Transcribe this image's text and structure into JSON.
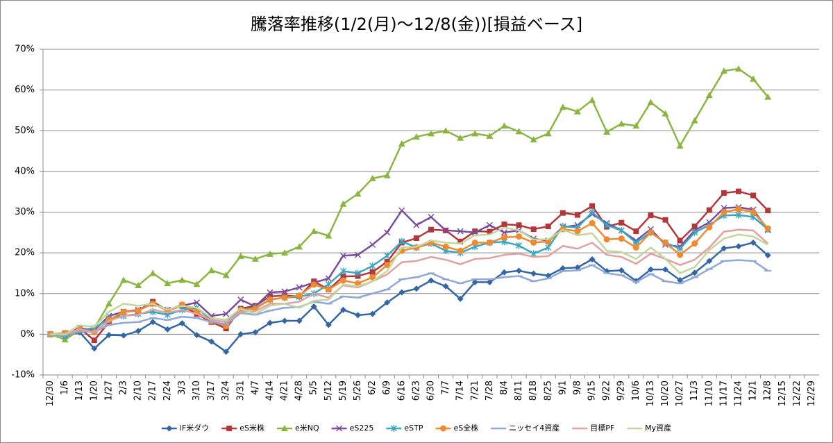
{
  "chart_data": {
    "type": "line",
    "title": "騰落率推移(1/2(月)～12/8(金))[損益ベース]",
    "categories": [
      "12/30",
      "1/6",
      "1/13",
      "1/20",
      "1/27",
      "2/3",
      "2/10",
      "2/17",
      "2/24",
      "3/3",
      "3/10",
      "3/17",
      "3/24",
      "3/31",
      "4/7",
      "4/14",
      "4/21",
      "4/28",
      "5/5",
      "5/12",
      "5/19",
      "5/26",
      "6/2",
      "6/9",
      "6/16",
      "6/23",
      "6/30",
      "7/7",
      "7/14",
      "7/21",
      "7/28",
      "8/4",
      "8/11",
      "8/18",
      "8/25",
      "9/1",
      "9/8",
      "9/15",
      "9/22",
      "9/29",
      "10/6",
      "10/13",
      "10/20",
      "10/27",
      "11/3",
      "11/10",
      "11/17",
      "11/24",
      "12/1",
      "12/8",
      "12/15",
      "12/22",
      "12/29"
    ],
    "ylim": [
      -10,
      70
    ],
    "yticks": [
      {
        "value": -10,
        "label": "-10%"
      },
      {
        "value": 0,
        "label": "0%"
      },
      {
        "value": 10,
        "label": "10%"
      },
      {
        "value": 20,
        "label": "20%"
      },
      {
        "value": 30,
        "label": "30%"
      },
      {
        "value": 40,
        "label": "40%"
      },
      {
        "value": 50,
        "label": "50%"
      },
      {
        "value": 60,
        "label": "60%"
      },
      {
        "value": 70,
        "label": "70%"
      }
    ],
    "grid": true,
    "legend": "bottom",
    "series": [
      {
        "name": "iF米ダウ",
        "color": "#3465a4",
        "marker": "diamond",
        "values": [
          0,
          -0.5,
          0.5,
          -3.5,
          -0.2,
          -0.3,
          0.8,
          3,
          1.2,
          2.7,
          -0.2,
          -1.8,
          -4.3,
          0,
          0.5,
          2.8,
          3.3,
          3.3,
          6.8,
          2.3,
          6,
          4.7,
          5,
          7.8,
          10.3,
          11.2,
          13.2,
          11.8,
          8.7,
          12.8,
          12.8,
          15.2,
          15.6,
          14.9,
          14.4,
          16.2,
          16.4,
          18.4,
          15.5,
          15.7,
          13.1,
          15.9,
          15.9,
          13.3,
          15.1,
          18,
          21.1,
          21.6,
          22.5,
          19.4,
          null,
          null,
          null
        ]
      },
      {
        "name": "eS米株",
        "color": "#b3373a",
        "marker": "square",
        "values": [
          0,
          0.2,
          1.5,
          -1.5,
          3,
          5.5,
          5.8,
          8,
          5.8,
          7,
          5,
          3,
          1.4,
          6.3,
          7,
          9.3,
          9.5,
          9.3,
          13,
          11,
          14.2,
          14.3,
          15.3,
          17.8,
          22.5,
          23.6,
          25.7,
          25.5,
          22.8,
          25.3,
          25.2,
          27,
          26.8,
          25.8,
          26.5,
          29.8,
          29.3,
          31.5,
          26.4,
          27.4,
          25.3,
          29.2,
          28.1,
          23,
          26.5,
          30.5,
          34.7,
          35.1,
          34.1,
          30.4,
          null,
          null,
          null
        ]
      },
      {
        "name": "e米NQ",
        "color": "#8ab540",
        "marker": "triangle",
        "values": [
          0,
          -1.3,
          1,
          1.5,
          7.5,
          13.3,
          12,
          15,
          12.5,
          13.3,
          12.3,
          15.7,
          14.5,
          19.2,
          18.5,
          19.7,
          20,
          21.5,
          25.3,
          24.2,
          32,
          34.5,
          38.3,
          39,
          46.8,
          48.5,
          49.3,
          50,
          48.2,
          49.3,
          48.7,
          51.2,
          49.8,
          47.8,
          49.3,
          55.8,
          54.7,
          57.5,
          49.7,
          51.7,
          51.2,
          57,
          54.2,
          46.3,
          52.5,
          58.7,
          64.7,
          65.2,
          62.7,
          58.3,
          null,
          null,
          null
        ]
      },
      {
        "name": "eS225",
        "color": "#7a4c9a",
        "marker": "x",
        "values": [
          0,
          0.3,
          1.5,
          1,
          4.5,
          5.5,
          6,
          7.5,
          6,
          7,
          7.8,
          4.5,
          5,
          8.5,
          6.8,
          10.3,
          10.5,
          11.5,
          12.7,
          13.7,
          19.3,
          19.5,
          22,
          25,
          30.4,
          26.8,
          28.8,
          25.5,
          25.3,
          25,
          26.8,
          25,
          25.5,
          23.5,
          23,
          26.3,
          26.8,
          29.5,
          27.3,
          25.5,
          23,
          25.8,
          22,
          21.5,
          25.5,
          27.5,
          31,
          31.2,
          30.6,
          25.6,
          null,
          null,
          null
        ]
      },
      {
        "name": "eSTP",
        "color": "#3aa6c0",
        "marker": "star",
        "values": [
          0,
          -0.5,
          1,
          1.5,
          3.8,
          4.5,
          5,
          5.5,
          4.8,
          6,
          6.5,
          3.5,
          3,
          6,
          6.5,
          8.5,
          9,
          9.2,
          10,
          12.3,
          15.5,
          15,
          16.8,
          19.3,
          22.8,
          21.3,
          22.3,
          20.5,
          20,
          21.5,
          22.5,
          22.7,
          21.8,
          19.8,
          21.3,
          26.5,
          26.2,
          30,
          26.8,
          25.5,
          22.5,
          25,
          22.5,
          21,
          25,
          26.8,
          29.2,
          29.3,
          28.8,
          25.8,
          null,
          null,
          null
        ]
      },
      {
        "name": "eS全株",
        "color": "#ee8a2f",
        "marker": "circle",
        "values": [
          0,
          0.3,
          1.2,
          0.5,
          3.5,
          5.5,
          5.8,
          7.5,
          5.8,
          7.3,
          5.5,
          3.2,
          2,
          6,
          6.3,
          8.5,
          9,
          9.5,
          12.2,
          11,
          13.2,
          12.5,
          14,
          17,
          20.5,
          21.3,
          22.5,
          21.5,
          20.5,
          22.5,
          22.5,
          23.8,
          24,
          22.5,
          22.8,
          25.8,
          25.3,
          27.3,
          23.3,
          23.5,
          21.3,
          25,
          22.5,
          19.5,
          22.3,
          26.3,
          30,
          30.7,
          30,
          26,
          null,
          null,
          null
        ]
      },
      {
        "name": "ニッセイ4資産",
        "color": "#8fa8d8",
        "marker": "dash",
        "values": [
          0,
          -0.3,
          0.8,
          0.5,
          2.3,
          2.8,
          3,
          4,
          3.5,
          4.3,
          4,
          3,
          2.5,
          5.2,
          4.8,
          5.8,
          6.5,
          6.7,
          8,
          7.5,
          9.3,
          9,
          10,
          11,
          13.5,
          14,
          15,
          13.5,
          12.5,
          13.5,
          13.5,
          14,
          14.3,
          13,
          13.7,
          15.5,
          15.7,
          17,
          15,
          14.5,
          12.8,
          14.8,
          13,
          12.5,
          14,
          16,
          18,
          18.2,
          18,
          15.6,
          null,
          null,
          null
        ]
      },
      {
        "name": "目標PF",
        "color": "#e2a0a0",
        "marker": "none",
        "values": [
          0,
          0,
          1.2,
          0.5,
          3.3,
          4.5,
          4.8,
          6,
          5.3,
          6,
          5,
          3.5,
          3,
          5.5,
          5.7,
          7.5,
          7.5,
          8,
          10,
          9,
          12,
          11.5,
          13,
          14.7,
          17.7,
          18,
          19,
          18.3,
          17.2,
          18.5,
          18.7,
          19.5,
          19.8,
          19,
          19.2,
          21.7,
          21,
          22.5,
          19.5,
          19,
          17.3,
          19.8,
          18.5,
          17,
          18.3,
          21.3,
          25.2,
          25.7,
          25.5,
          22.3,
          null,
          null,
          null
        ]
      },
      {
        "name": "My資産",
        "color": "#c3d69b",
        "marker": "none",
        "values": [
          0,
          0,
          2.2,
          1.8,
          5.5,
          7.5,
          7,
          7.5,
          6,
          7,
          6.5,
          4,
          3.5,
          6.3,
          5,
          7,
          7.5,
          6.5,
          8.2,
          8.5,
          12.2,
          11.8,
          13,
          15.5,
          21.3,
          21.5,
          23,
          22.5,
          22.3,
          24.3,
          24.5,
          26.2,
          25.5,
          23.3,
          23.3,
          25.7,
          24.3,
          24.8,
          20.5,
          20.2,
          18.5,
          21.3,
          18.5,
          15,
          16.5,
          20.7,
          23.5,
          24.5,
          24,
          22,
          null,
          null,
          null
        ]
      }
    ]
  }
}
